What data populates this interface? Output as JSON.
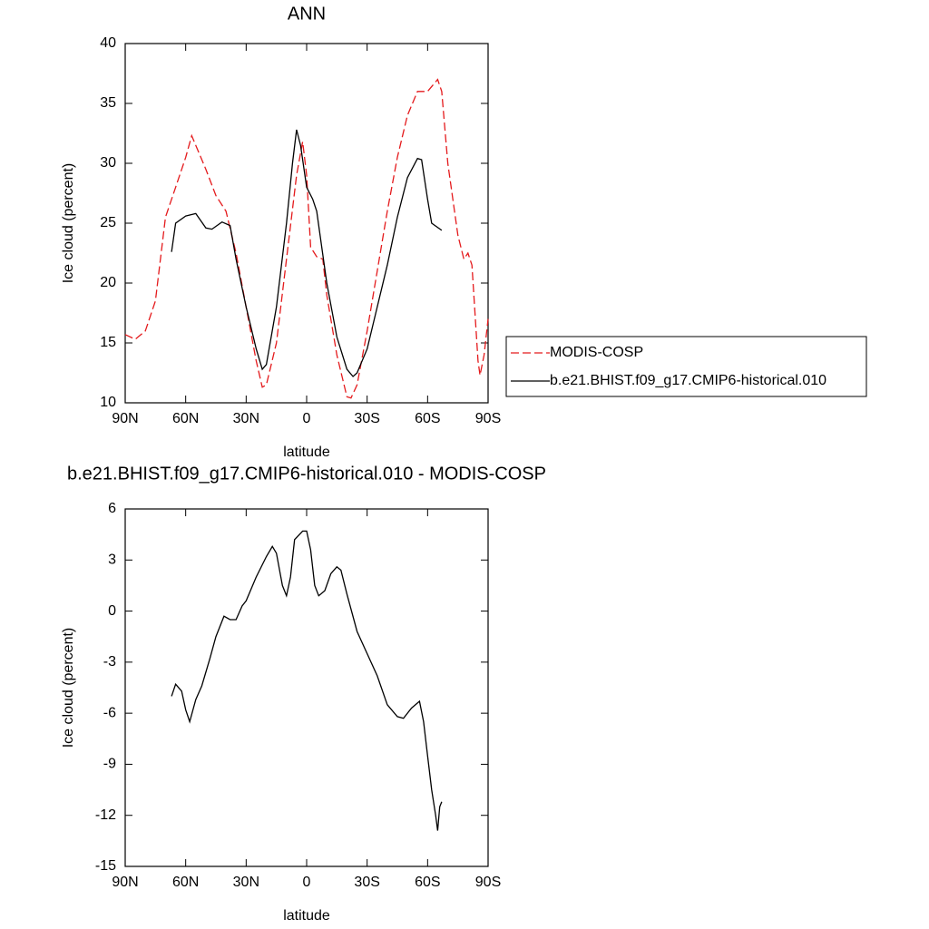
{
  "chart_data": [
    {
      "type": "line",
      "title": "ANN",
      "xlabel": "latitude",
      "ylabel": "Ice cloud (percent)",
      "xlim": [
        90,
        -90
      ],
      "ylim": [
        10,
        40
      ],
      "xticks": [
        {
          "value": 90,
          "label": "90N"
        },
        {
          "value": 60,
          "label": "60N"
        },
        {
          "value": 30,
          "label": "30N"
        },
        0,
        {
          "value": -30,
          "label": "30S"
        },
        {
          "value": -60,
          "label": "60S"
        },
        {
          "value": -90,
          "label": "90S"
        }
      ],
      "yticks": [
        10,
        15,
        20,
        25,
        30,
        35,
        40
      ],
      "legend": "right",
      "series": [
        {
          "name": "MODIS-COSP",
          "color": "#e41a1c",
          "dash": "dashed",
          "x": [
            90,
            85,
            80,
            75,
            70,
            65,
            60,
            57,
            55,
            50,
            45,
            40,
            35,
            30,
            25,
            22,
            20,
            15,
            10,
            5,
            2,
            0,
            -2,
            -5,
            -8,
            -10,
            -15,
            -20,
            -22,
            -25,
            -30,
            -35,
            -40,
            -45,
            -50,
            -55,
            -60,
            -65,
            -67,
            -70,
            -75,
            -78,
            -80,
            -82,
            -85,
            -86,
            -88,
            -90
          ],
          "values": [
            15.7,
            15.3,
            16.0,
            18.5,
            25.5,
            28,
            30.5,
            32.3,
            31.5,
            29.5,
            27.3,
            26,
            22.5,
            18,
            13.5,
            11.3,
            11.5,
            15,
            22,
            29,
            31.8,
            29,
            23,
            22.2,
            22,
            19,
            14,
            10.5,
            10.4,
            11.5,
            16,
            21,
            26,
            30.5,
            34,
            36,
            36,
            37,
            36,
            30,
            24,
            22,
            22.5,
            21.5,
            13.5,
            12.3,
            14,
            17
          ]
        },
        {
          "name": "b.e21.BHIST.f09_g17.CMIP6-historical.010",
          "color": "#000000",
          "dash": "solid",
          "x": [
            67,
            65,
            60,
            55,
            50,
            47,
            42,
            38,
            35,
            30,
            25,
            22,
            20,
            15,
            10,
            7,
            5,
            3,
            0,
            -3,
            -5,
            -10,
            -15,
            -20,
            -23,
            -25,
            -30,
            -35,
            -40,
            -45,
            -50,
            -55,
            -57,
            -60,
            -62,
            -67
          ],
          "values": [
            22.6,
            25,
            25.6,
            25.8,
            24.6,
            24.5,
            25.1,
            24.8,
            22,
            18,
            14.5,
            12.8,
            13.2,
            18,
            25,
            30,
            32.8,
            31.5,
            28,
            27,
            26,
            20,
            15.5,
            12.8,
            12.2,
            12.5,
            14.5,
            18,
            21.5,
            25.5,
            28.8,
            30.4,
            30.3,
            27,
            25,
            24.4
          ]
        }
      ]
    },
    {
      "type": "line",
      "title": "b.e21.BHIST.f09_g17.CMIP6-historical.010 - MODIS-COSP",
      "xlabel": "latitude",
      "ylabel": "Ice cloud (percent)",
      "xlim": [
        90,
        -90
      ],
      "ylim": [
        -15,
        6
      ],
      "xticks": [
        {
          "value": 90,
          "label": "90N"
        },
        {
          "value": 60,
          "label": "60N"
        },
        {
          "value": 30,
          "label": "30N"
        },
        0,
        {
          "value": -30,
          "label": "30S"
        },
        {
          "value": -60,
          "label": "60S"
        },
        {
          "value": -90,
          "label": "90S"
        }
      ],
      "yticks": [
        -15,
        -12,
        -9,
        -6,
        -3,
        0,
        3,
        6
      ],
      "series": [
        {
          "color": "#000000",
          "dash": "solid",
          "x": [
            67,
            65,
            62,
            60,
            58,
            55,
            52,
            48,
            45,
            41,
            38,
            35,
            32,
            30,
            25,
            20,
            17,
            15,
            12,
            10,
            8,
            6,
            2,
            0,
            -2,
            -4,
            -6,
            -9,
            -12,
            -15,
            -17,
            -20,
            -25,
            -30,
            -35,
            -40,
            -45,
            -48,
            -52,
            -54,
            -56,
            -58,
            -60,
            -62,
            -64,
            -65,
            -66,
            -67
          ],
          "values": [
            -5,
            -4.3,
            -4.7,
            -5.8,
            -6.5,
            -5.2,
            -4.4,
            -2.8,
            -1.5,
            -0.3,
            -0.5,
            -0.5,
            0.3,
            0.6,
            2,
            3.2,
            3.8,
            3.4,
            1.5,
            0.9,
            2,
            4.2,
            4.7,
            4.7,
            3.6,
            1.5,
            0.9,
            1.2,
            2.2,
            2.6,
            2.4,
            1,
            -1.2,
            -2.5,
            -3.8,
            -5.5,
            -6.2,
            -6.3,
            -5.7,
            -5.5,
            -5.3,
            -6.5,
            -8.5,
            -10.5,
            -12,
            -12.9,
            -11.5,
            -11.2
          ]
        }
      ]
    }
  ]
}
